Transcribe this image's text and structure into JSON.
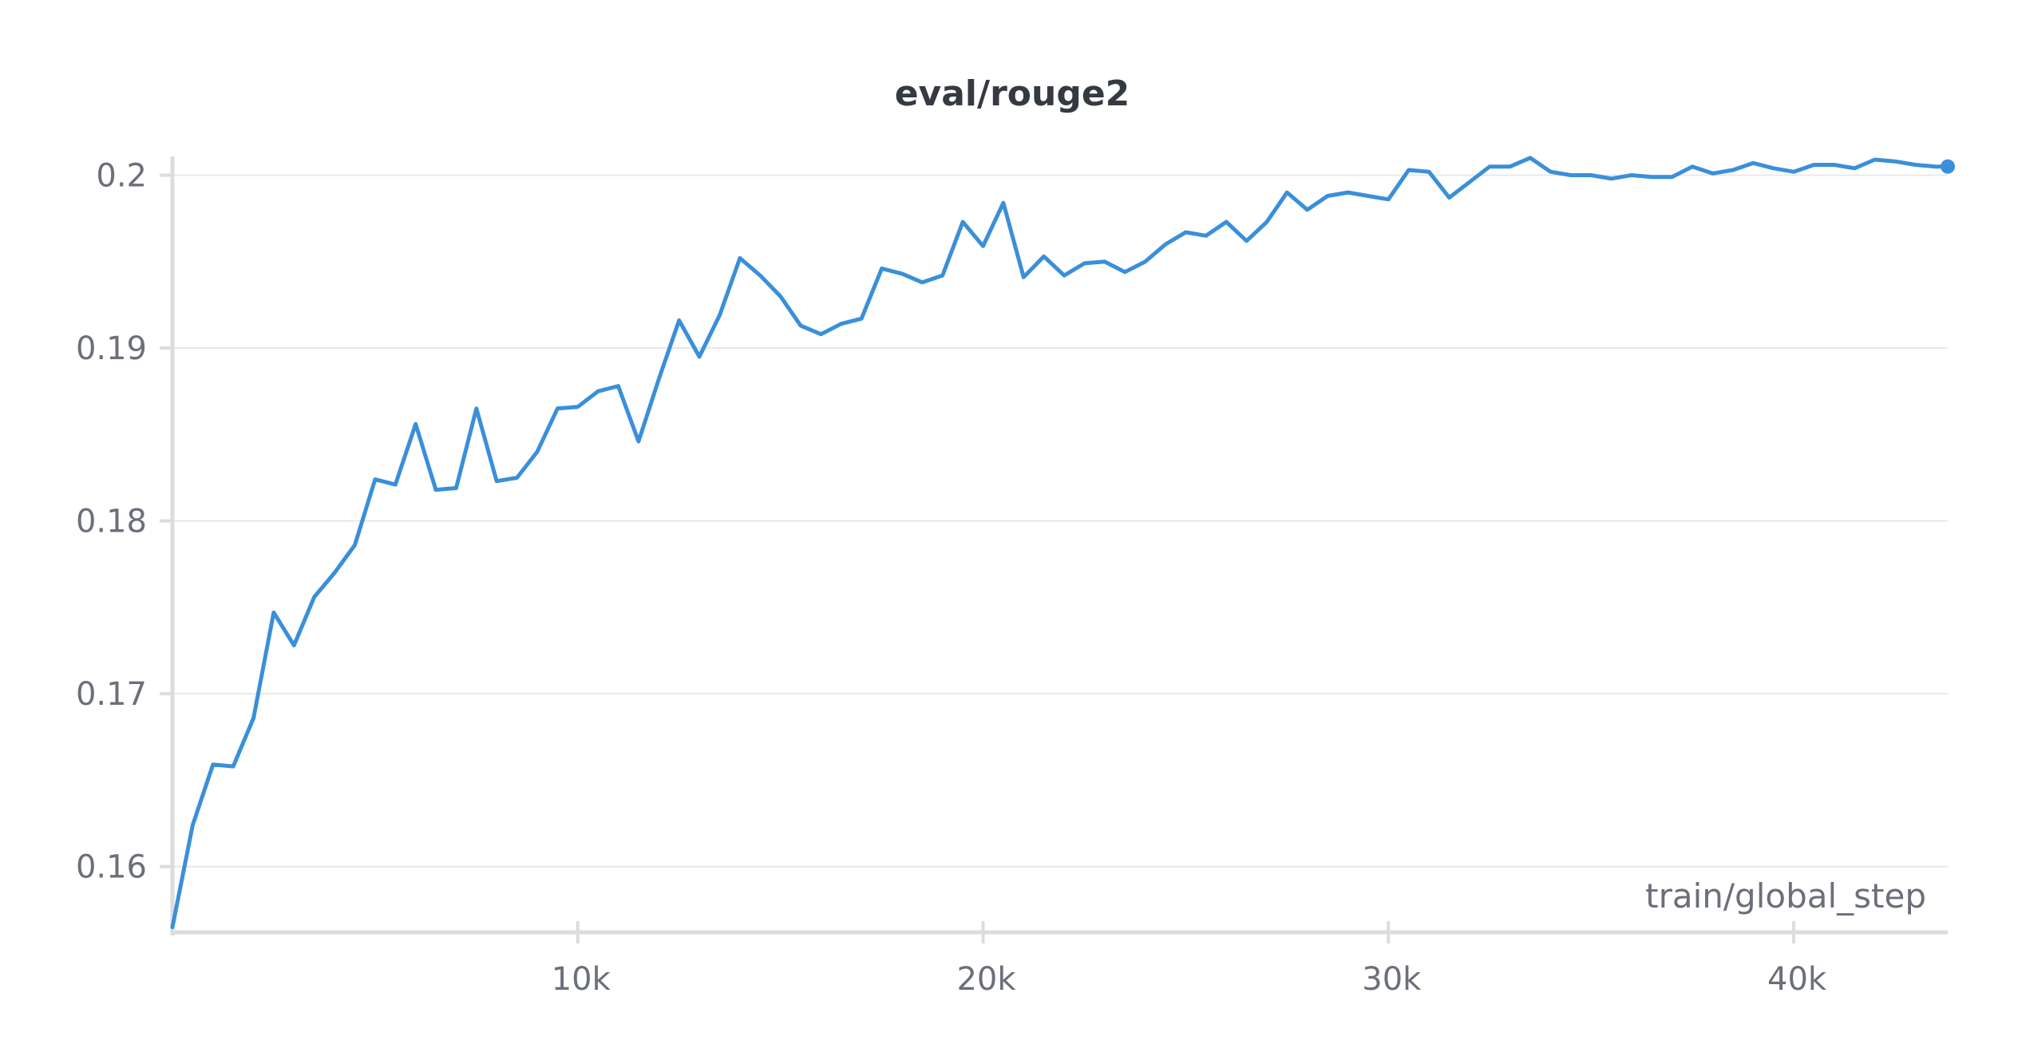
{
  "chart_data": {
    "type": "line",
    "title": "eval/rouge2",
    "xlabel": "train/global_step",
    "ylabel": "",
    "xlim": [
      0,
      43800
    ],
    "ylim": [
      0.1562,
      0.2009
    ],
    "x_ticks": [
      10000,
      20000,
      30000,
      40000
    ],
    "x_tick_labels": [
      "10k",
      "20k",
      "30k",
      "40k"
    ],
    "y_ticks": [
      0.16,
      0.17,
      0.18,
      0.19,
      0.2
    ],
    "y_tick_labels": [
      "0.16",
      "0.17",
      "0.18",
      "0.19",
      "0.2"
    ],
    "grid": true,
    "legend": "none",
    "end_marker": true,
    "color": "#3a8fd9",
    "series": [
      {
        "x": [
          0,
          500,
          1000,
          1500,
          2000,
          2500,
          3000,
          3500,
          4000,
          4500,
          5000,
          5500,
          6000,
          6500,
          7000,
          7500,
          8000,
          8500,
          9000,
          9500,
          10000,
          10500,
          11000,
          11500,
          12000,
          12500,
          13000,
          13500,
          14000,
          14500,
          15000,
          15500,
          16000,
          16500,
          17000,
          17500,
          18000,
          18500,
          19000,
          19500,
          20000,
          20500,
          21000,
          21500,
          22000,
          22500,
          23000,
          23500,
          24000,
          24500,
          25000,
          25500,
          26000,
          26500,
          27000,
          27500,
          28000,
          28500,
          29000,
          29500,
          30000,
          30500,
          31000,
          31500,
          32000,
          32500,
          33000,
          33500,
          34000,
          34500,
          35000,
          35500,
          36000,
          36500,
          37000,
          37500,
          38000,
          38500,
          39000,
          39500,
          40000,
          40500,
          41000,
          41500,
          42000,
          42500,
          43000,
          43500,
          43800
        ],
        "y": [
          0.1565,
          0.1624,
          0.1659,
          0.1658,
          0.1686,
          0.1747,
          0.1728,
          0.1756,
          0.177,
          0.1786,
          0.1824,
          0.1821,
          0.1856,
          0.1818,
          0.1819,
          0.1865,
          0.1823,
          0.1825,
          0.184,
          0.1865,
          0.1866,
          0.1875,
          0.1878,
          0.1846,
          0.1882,
          0.1916,
          0.1895,
          0.1919,
          0.1952,
          0.1942,
          0.193,
          0.1913,
          0.1908,
          0.1914,
          0.1917,
          0.1946,
          0.1943,
          0.1938,
          0.1942,
          0.1973,
          0.1959,
          0.1984,
          0.1941,
          0.1953,
          0.1942,
          0.1949,
          0.195,
          0.1944,
          0.195,
          0.196,
          0.1967,
          0.1965,
          0.1973,
          0.1962,
          0.1973,
          0.199,
          0.198,
          0.1988,
          0.199,
          0.1988,
          0.1986,
          0.2003,
          0.2002,
          0.1987,
          0.1996,
          0.2005,
          0.2005,
          0.201,
          0.2002,
          0.2,
          0.2,
          0.1998,
          0.2,
          0.1999,
          0.1999,
          0.2005,
          0.2001,
          0.2003,
          0.2007,
          0.2004,
          0.2002,
          0.2006,
          0.2006,
          0.2004,
          0.2009,
          0.2008,
          0.2006,
          0.2005,
          0.2005
        ]
      }
    ]
  }
}
